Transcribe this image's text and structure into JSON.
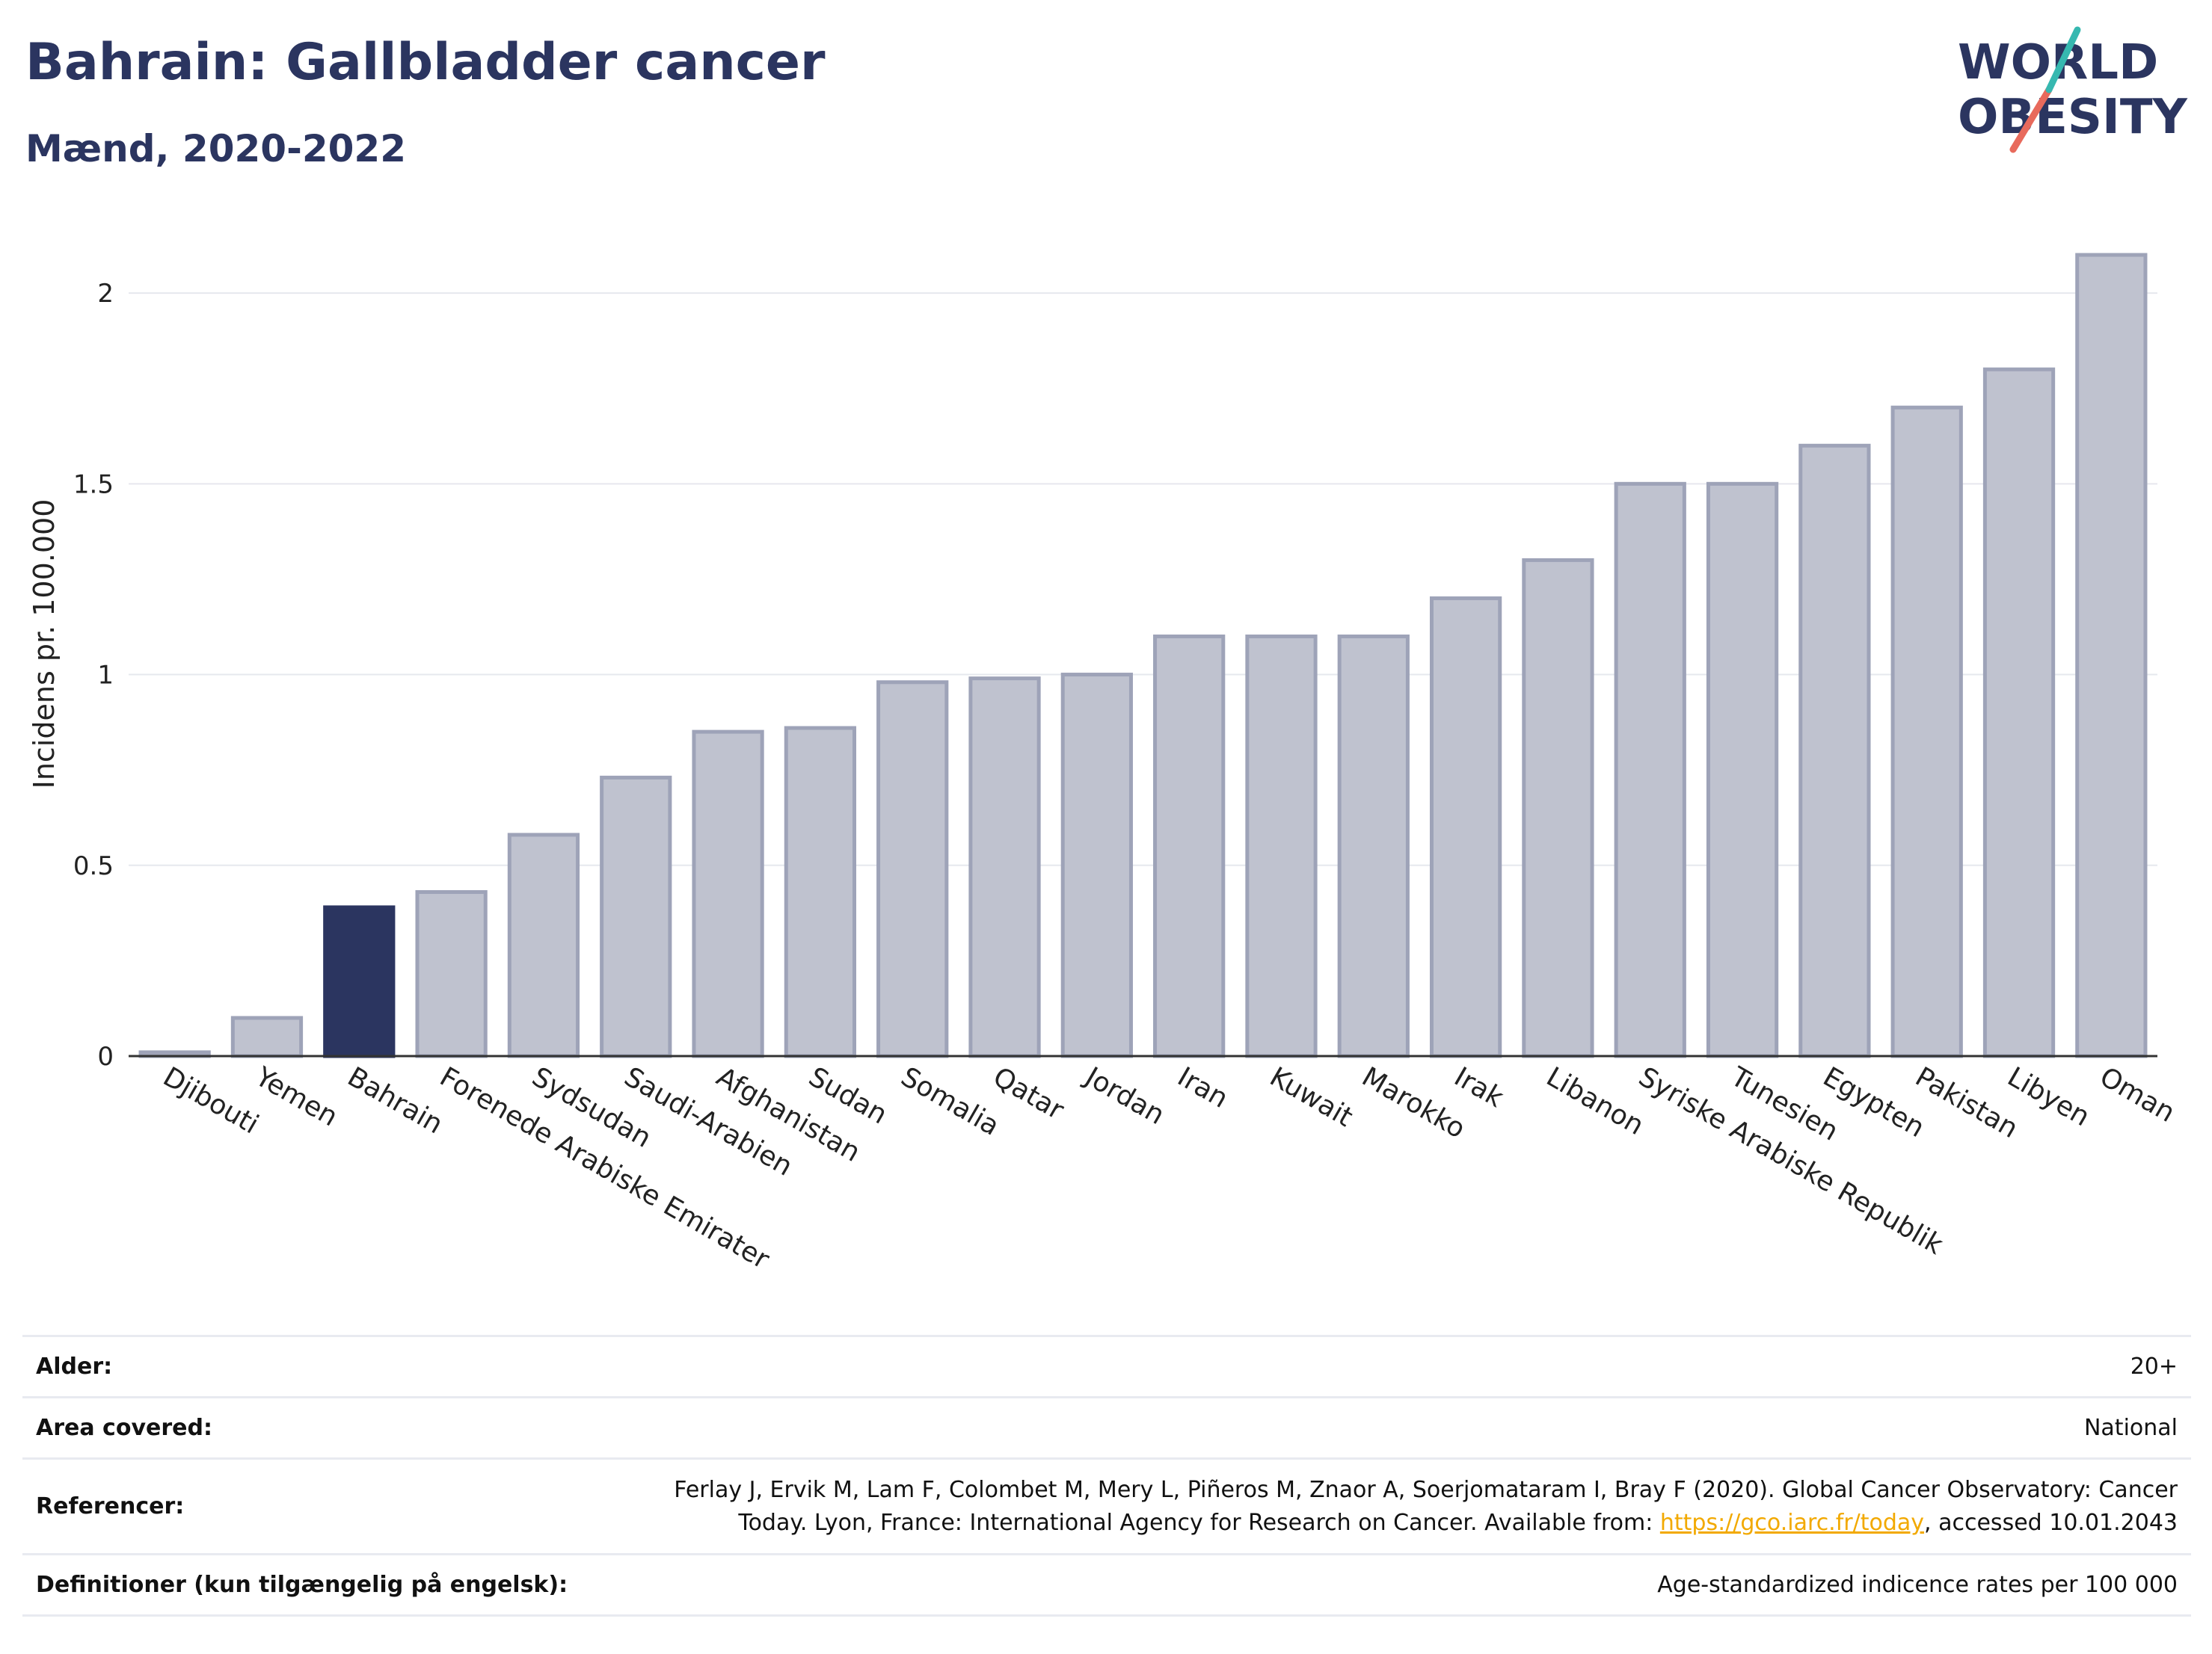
{
  "header": {
    "title": "Bahrain: Gallbladder cancer",
    "subtitle": "Mænd, 2020-2022"
  },
  "logo": {
    "line1": "WORLD",
    "line2": "OBESITY"
  },
  "colors": {
    "highlight": "#2b3560",
    "bar": "#bfc2cf",
    "bar_stroke": "#9ea3b8",
    "title": "#2b3560"
  },
  "chart_data": {
    "type": "bar",
    "ylabel": "Incidens pr. 100.000",
    "ylim": [
      0,
      2.2
    ],
    "yticks": [
      "0",
      "0.5",
      "1",
      "1.5",
      "2"
    ],
    "grid": true,
    "highlight": "Bahrain",
    "categories": [
      "Djibouti",
      "Yemen",
      "Bahrain",
      "Forenede Arabiske Emirater",
      "Sydsudan",
      "Saudi-Arabien",
      "Afghanistan",
      "Sudan",
      "Somalia",
      "Qatar",
      "Jordan",
      "Iran",
      "Kuwait",
      "Marokko",
      "Irak",
      "Libanon",
      "Syriske Arabiske Republik",
      "Tunesien",
      "Egypten",
      "Pakistan",
      "Libyen",
      "Oman"
    ],
    "values": [
      0.01,
      0.1,
      0.39,
      0.43,
      0.58,
      0.73,
      0.85,
      0.86,
      0.98,
      0.99,
      1.0,
      1.1,
      1.1,
      1.1,
      1.2,
      1.3,
      1.5,
      1.5,
      1.6,
      1.7,
      1.8,
      2.1
    ]
  },
  "meta": {
    "age_label": "Alder:",
    "age_value": "20+",
    "area_label": "Area covered:",
    "area_value": "National",
    "ref_label": "Referencer:",
    "ref_text1": "Ferlay J, Ervik M, Lam F, Colombet M, Mery L, Piñeros M, Znaor A, Soerjomataram I, Bray F (2020). Global Cancer Observatory: Cancer",
    "ref_text2": "Today. Lyon, France: International Agency for Research on Cancer. Available from: ",
    "ref_link": "https://gco.iarc.fr/today",
    "ref_text3": ", accessed 10.01.2043",
    "def_label": "Definitioner (kun tilgængelig på engelsk):",
    "def_value": "Age-standardized indicence rates per 100 000"
  }
}
